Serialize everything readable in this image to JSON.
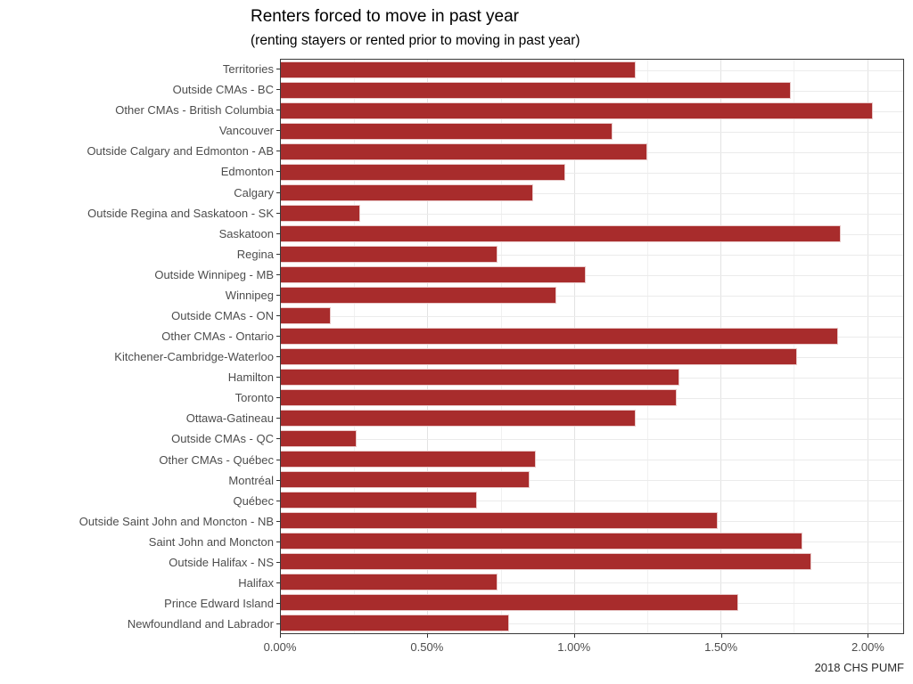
{
  "colors": {
    "bar": "#A82C2C",
    "axis_text": "#4D4D4D",
    "grid_major": "#E3E3E3",
    "grid_minor": "#F1F1F1",
    "panel_border": "#3A3A3A"
  },
  "chart_data": {
    "type": "bar",
    "orientation": "horizontal",
    "title": "Renters forced to move in past year",
    "subtitle": "(renting stayers or rented prior to moving in past year)",
    "caption": "2018 CHS PUMF",
    "xlabel": "",
    "ylabel": "",
    "grid": "on",
    "xlim": [
      0,
      2.123
    ],
    "x_ticks": [
      "0.00%",
      "0.50%",
      "1.00%",
      "1.50%",
      "2.00%"
    ],
    "x_tick_values": [
      0,
      0.5,
      1.0,
      1.5,
      2.0
    ],
    "minor_tick_values": [
      0.25,
      0.75,
      1.25,
      1.75
    ],
    "categories": [
      "Territories",
      "Outside CMAs - BC",
      "Other CMAs - British Columbia",
      "Vancouver",
      "Outside Calgary and Edmonton - AB",
      "Edmonton",
      "Calgary",
      "Outside Regina and Saskatoon - SK",
      "Saskatoon",
      "Regina",
      "Outside Winnipeg - MB",
      "Winnipeg",
      "Outside CMAs - ON",
      "Other CMAs - Ontario",
      "Kitchener-Cambridge-Waterloo",
      "Hamilton",
      "Toronto",
      "Ottawa-Gatineau",
      "Outside CMAs - QC",
      "Other CMAs - Québec",
      "Montréal",
      "Québec",
      "Outside Saint John and Moncton - NB",
      "Saint John and Moncton",
      "Outside Halifax - NS",
      "Halifax",
      "Prince Edward Island",
      "Newfoundland and Labrador"
    ],
    "values": [
      1.21,
      1.74,
      2.02,
      1.13,
      1.25,
      0.97,
      0.86,
      0.27,
      1.91,
      0.74,
      1.04,
      0.94,
      0.17,
      1.9,
      1.76,
      1.36,
      1.35,
      1.21,
      0.26,
      0.87,
      0.85,
      0.67,
      1.49,
      1.78,
      1.81,
      0.74,
      1.56,
      0.78
    ],
    "unit": "%"
  }
}
